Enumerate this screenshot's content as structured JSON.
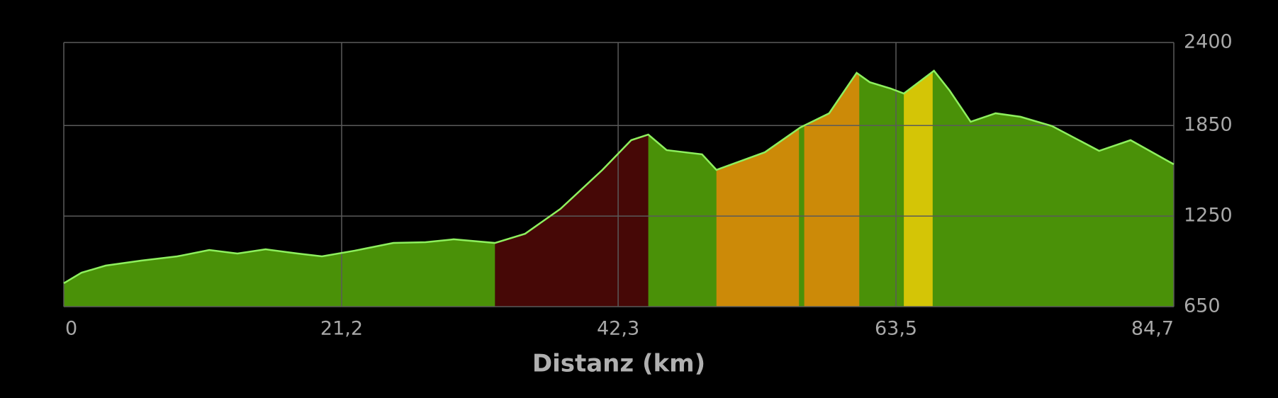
{
  "chart_data": {
    "type": "elevation-profile",
    "x_label": "Distanz (km)",
    "xlim": [
      0,
      84.7
    ],
    "xticks": [
      0,
      {
        "value": 21.2,
        "label": "21,2"
      },
      {
        "value": 42.3,
        "label": "42,3"
      },
      {
        "value": 63.5,
        "label": "63,5"
      },
      {
        "value": 84.7,
        "label": "84,7"
      }
    ],
    "ylim": [
      650,
      2400
    ],
    "yticks": [
      650,
      1250,
      1850,
      2400
    ],
    "grid": true,
    "fill_color": "#4a9108",
    "line_color": "#8ef05e",
    "x": [
      0,
      1.35,
      3.2,
      5.9,
      8.65,
      11.1,
      13.25,
      15.4,
      17.85,
      19.7,
      22.2,
      25.15,
      27.6,
      29.75,
      32.9,
      35.2,
      37.9,
      41.1,
      43.3,
      44.6,
      46.0,
      48.7,
      49.8,
      53.5,
      56.2,
      58.4,
      60.5,
      61.5,
      63.1,
      64.1,
      66.4,
      67.6,
      69.2,
      71.1,
      73.0,
      75.4,
      79.0,
      81.4,
      84.7
    ],
    "values": [
      805,
      875,
      922,
      955,
      983,
      1025,
      1002,
      1030,
      1002,
      983,
      1021,
      1072,
      1077,
      1096,
      1072,
      1133,
      1298,
      1556,
      1753,
      1790,
      1687,
      1659,
      1556,
      1673,
      1837,
      1931,
      2199,
      2137,
      2095,
      2062,
      2213,
      2081,
      1875,
      1931,
      1908,
      1847,
      1682,
      1753,
      1593
    ],
    "segments": [
      {
        "start": 32.9,
        "end": 44.6,
        "color": "#460806"
      },
      {
        "start": 49.8,
        "end": 56.1,
        "color": "#cc8a08"
      },
      {
        "start": 56.5,
        "end": 60.7,
        "color": "#cc8a08"
      },
      {
        "start": 64.1,
        "end": 66.3,
        "color": "#d4c506"
      }
    ]
  }
}
